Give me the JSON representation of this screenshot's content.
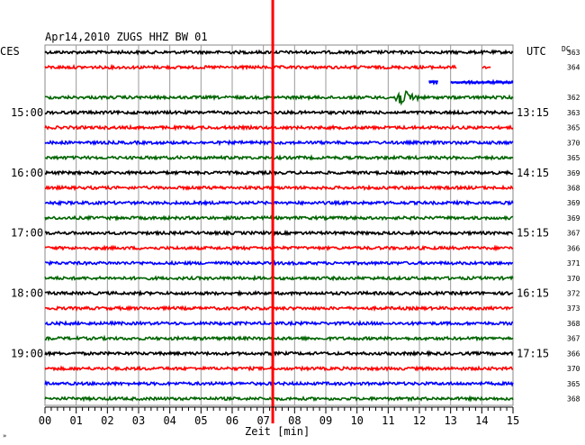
{
  "chart_data": {
    "type": "line",
    "title": "Apr14,2010   ZUGS HHZ BW 01",
    "left_header": "CES",
    "right_header": "UTC",
    "dc_header": "DC",
    "xlabel": "Zeit [min]",
    "xlim": [
      0,
      15
    ],
    "x_ticks": [
      "00",
      "01",
      "02",
      "03",
      "04",
      "05",
      "06",
      "07",
      "08",
      "09",
      "10",
      "11",
      "12",
      "13",
      "14",
      "15"
    ],
    "left_time_labels": [
      {
        "row": 4,
        "label": "15:00"
      },
      {
        "row": 8,
        "label": "16:00"
      },
      {
        "row": 12,
        "label": "17:00"
      },
      {
        "row": 16,
        "label": "18:00"
      },
      {
        "row": 20,
        "label": "19:00"
      }
    ],
    "right_time_labels": [
      {
        "row": 4,
        "label": "13:15"
      },
      {
        "row": 8,
        "label": "14:15"
      },
      {
        "row": 12,
        "label": "15:15"
      },
      {
        "row": 16,
        "label": "16:15"
      },
      {
        "row": 20,
        "label": "17:15"
      }
    ],
    "dc_values": [
      "363",
      "364",
      "",
      "362",
      "363",
      "365",
      "370",
      "365",
      "369",
      "368",
      "369",
      "369",
      "367",
      "366",
      "371",
      "370",
      "372",
      "373",
      "368",
      "367",
      "366",
      "370",
      "365",
      "368"
    ],
    "trace_colors": [
      "#000000",
      "#ff0000",
      "#0000ff",
      "#006400"
    ],
    "event_minute": 7.3,
    "event_color": "#ff0000",
    "local_event": {
      "row": 3,
      "start_minute": 11.2,
      "label": ""
    },
    "gap_segments": [
      {
        "row": 1,
        "from_minute": 13.2,
        "to_minute": 14.0
      },
      {
        "row": 1,
        "from_minute": 14.3,
        "to_minute": 15.0
      },
      {
        "row": 2,
        "from_minute": 0.0,
        "to_minute": 12.3
      },
      {
        "row": 2,
        "from_minute": 12.6,
        "to_minute": 13.0
      }
    ],
    "corner_mark": "»"
  }
}
